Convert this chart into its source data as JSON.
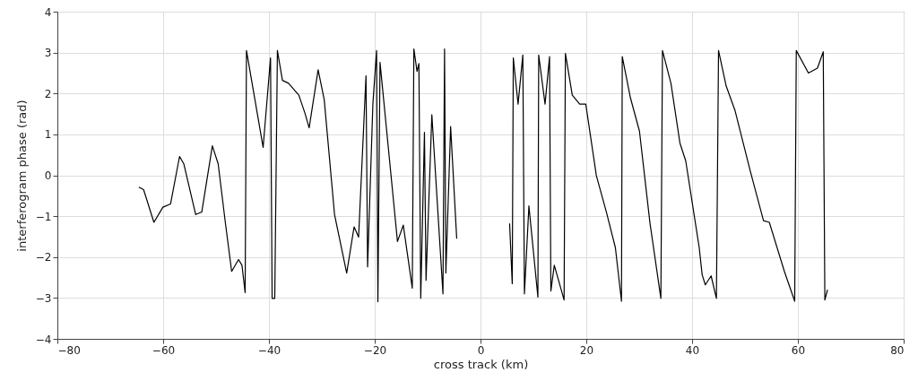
{
  "chart_data": {
    "type": "line",
    "xlabel": "cross track (km)",
    "ylabel": "interferogram phase (rad)",
    "xlim": [
      -80,
      80
    ],
    "xticks": [
      -80,
      -60,
      -40,
      -20,
      0,
      20,
      40,
      60,
      80
    ],
    "ylim": [
      -4,
      4
    ],
    "yticks": [
      -4,
      -3,
      -2,
      -1,
      0,
      1,
      2,
      3,
      4
    ],
    "grid": true,
    "marker": "none",
    "line_style": "solid",
    "x": [
      -64.6,
      -63.7,
      -61.75,
      -60.05,
      -58.6,
      -56.9,
      -56.1,
      -53.85,
      -52.7,
      -50.7,
      -49.6,
      -48.2,
      -47.05,
      -45.75,
      -45.1,
      -44.5,
      -44.25,
      -41.1,
      -39.7,
      -39.4,
      -38.9,
      -38.4,
      -37.45,
      -36.3,
      -34.35,
      -33.2,
      -32.4,
      -30.7,
      -29.55,
      -27.6,
      -25.3,
      -23.9,
      -23.05,
      -21.65,
      -21.35,
      -20.35,
      -19.65,
      -19.4,
      -19.0,
      -15.7,
      -14.6,
      -12.9,
      -12.6,
      -12.0,
      -11.65,
      -11.3,
      -10.6,
      -10.3,
      -9.2,
      -7.1,
      -6.8,
      -6.55,
      -5.65,
      -4.5,
      0,
      5.5,
      6.0,
      6.2,
      7.1,
      8.0,
      8.3,
      9.15,
      10.85,
      11.0,
      12.2,
      13.05,
      13.3,
      13.95,
      15.8,
      16.05,
      17.35,
      18.75,
      19.9,
      21.9,
      23.8,
      25.5,
      26.65,
      26.8,
      28.35,
      30.05,
      32.05,
      34.1,
      34.4,
      36.0,
      37.7,
      38.8,
      41.35,
      41.9,
      42.5,
      43.6,
      44.6,
      45.0,
      46.45,
      48.1,
      50.95,
      53.5,
      54.6,
      57.45,
      59.4,
      59.7,
      62.0,
      63.7,
      64.8,
      65.1,
      65.6
    ],
    "series": [
      {
        "color": "#000000",
        "values": [
          -0.29,
          -0.35,
          -1.15,
          -0.78,
          -0.7,
          0.46,
          0.28,
          -0.96,
          -0.9,
          0.72,
          0.28,
          -1.2,
          -2.35,
          -2.06,
          -2.2,
          -2.87,
          3.05,
          0.68,
          2.87,
          -3.01,
          -3.01,
          3.05,
          2.32,
          2.25,
          1.96,
          1.52,
          1.16,
          2.58,
          1.85,
          -0.96,
          -2.39,
          -1.26,
          -1.51,
          2.43,
          -2.24,
          1.74,
          3.05,
          -3.09,
          2.76,
          -1.62,
          -1.22,
          -2.76,
          3.09,
          2.54,
          2.73,
          -3.01,
          1.05,
          -2.57,
          1.48,
          -2.9,
          3.09,
          -2.39,
          1.19,
          -1.55,
          null,
          -1.18,
          -2.65,
          2.87,
          1.74,
          2.94,
          -2.9,
          -0.75,
          -2.98,
          2.94,
          1.74,
          2.9,
          -2.83,
          -2.2,
          -3.05,
          2.98,
          1.96,
          1.74,
          1.74,
          -0.01,
          -0.9,
          -1.77,
          -3.08,
          2.9,
          1.89,
          1.08,
          -1.18,
          -3.01,
          3.05,
          2.25,
          0.79,
          0.35,
          -1.77,
          -2.43,
          -2.68,
          -2.46,
          -3.01,
          3.05,
          2.18,
          1.59,
          0.13,
          -1.11,
          -1.15,
          -2.35,
          -3.08,
          3.05,
          2.5,
          2.62,
          3.02,
          -3.05,
          -2.8
        ]
      }
    ]
  }
}
